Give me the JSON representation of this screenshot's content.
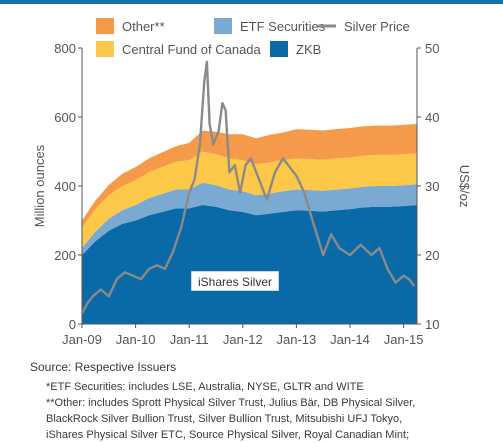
{
  "chart_data": {
    "type": "area",
    "title": "",
    "ylabel_left": "Million ounces",
    "ylabel_right": "US$/oz",
    "ylim_left": [
      0,
      800
    ],
    "ylim_right": [
      10,
      50
    ],
    "y_ticks_left": [
      "0",
      "200",
      "400",
      "600",
      "800"
    ],
    "y_ticks_right": [
      "10",
      "20",
      "30",
      "40",
      "50"
    ],
    "x_ticks": [
      "Jan-09",
      "Jan-10",
      "Jan-11",
      "Jan-12",
      "Jan-13",
      "Jan-14",
      "Jan-15"
    ],
    "stacking_order_bottom_to_top": [
      "ZKB",
      "ETF Securities",
      "Central Fund of Canada",
      "Other**"
    ],
    "x": [
      2009.0,
      2009.25,
      2009.5,
      2009.75,
      2010.0,
      2010.25,
      2010.5,
      2010.75,
      2011.0,
      2011.25,
      2011.5,
      2011.75,
      2012.0,
      2012.25,
      2012.5,
      2012.75,
      2013.0,
      2013.25,
      2013.5,
      2013.75,
      2014.0,
      2014.25,
      2014.5,
      2014.75,
      2015.0,
      2015.25
    ],
    "series": [
      {
        "name": "ZKB",
        "color": "#0a6aa8",
        "axis": "left",
        "values": [
          200,
          240,
          270,
          290,
          300,
          315,
          325,
          335,
          335,
          345,
          340,
          330,
          325,
          315,
          320,
          325,
          330,
          328,
          326,
          330,
          333,
          338,
          340,
          340,
          342,
          345
        ]
      },
      {
        "name": "ETF Securities",
        "color": "#7aa9d1",
        "axis": "left",
        "values": [
          20,
          28,
          35,
          40,
          45,
          50,
          52,
          55,
          55,
          65,
          62,
          60,
          60,
          58,
          58,
          60,
          60,
          60,
          60,
          60,
          60,
          60,
          60,
          60,
          60,
          60
        ]
      },
      {
        "name": "Central Fund of Canada",
        "color": "#fdc848",
        "axis": "left",
        "values": [
          60,
          65,
          68,
          70,
          72,
          75,
          78,
          80,
          85,
          90,
          90,
          90,
          90,
          90,
          90,
          90,
          90,
          90,
          90,
          90,
          90,
          90,
          90,
          90,
          90,
          90
        ]
      },
      {
        "name": "Other**",
        "color": "#f49a4a",
        "axis": "left",
        "values": [
          20,
          25,
          30,
          35,
          38,
          40,
          43,
          45,
          50,
          60,
          65,
          70,
          75,
          75,
          80,
          80,
          85,
          85,
          85,
          85,
          85,
          85,
          85,
          85,
          85,
          85
        ]
      },
      {
        "name": "Silver Price",
        "color": "#8a8a8a",
        "axis": "right",
        "type": "line",
        "x": [
          2009.0,
          2009.1,
          2009.2,
          2009.35,
          2009.5,
          2009.65,
          2009.8,
          2009.95,
          2010.1,
          2010.25,
          2010.4,
          2010.55,
          2010.7,
          2010.85,
          2011.0,
          2011.1,
          2011.2,
          2011.28,
          2011.33,
          2011.38,
          2011.45,
          2011.55,
          2011.62,
          2011.68,
          2011.75,
          2011.85,
          2011.95,
          2012.05,
          2012.15,
          2012.3,
          2012.45,
          2012.6,
          2012.75,
          2012.9,
          2013.0,
          2013.15,
          2013.3,
          2013.5,
          2013.65,
          2013.8,
          2014.0,
          2014.2,
          2014.4,
          2014.55,
          2014.7,
          2014.85,
          2015.0,
          2015.1,
          2015.2
        ],
        "values": [
          11.5,
          13.0,
          14.0,
          15.0,
          14.0,
          16.5,
          17.5,
          17.0,
          16.5,
          18.0,
          18.5,
          18.0,
          20.5,
          24.0,
          29.0,
          31.0,
          36.0,
          45.0,
          48.0,
          39.0,
          36.0,
          38.0,
          42.0,
          41.0,
          32.0,
          33.0,
          29.0,
          33.0,
          34.0,
          31.0,
          28.0,
          32.0,
          34.0,
          32.5,
          31.5,
          29.0,
          25.0,
          20.0,
          23.0,
          21.0,
          20.0,
          21.5,
          20.0,
          21.0,
          18.0,
          16.0,
          17.0,
          16.5,
          15.5
        ]
      }
    ],
    "legend": [
      {
        "label": "Other**",
        "color": "#f49a4a",
        "kind": "swatch"
      },
      {
        "label": "ETF Securities",
        "color": "#7aa9d1",
        "kind": "swatch"
      },
      {
        "label": "Silver Price",
        "color": "#8a8a8a",
        "kind": "line"
      },
      {
        "label": "Central Fund of Canada",
        "color": "#fdc848",
        "kind": "swatch"
      },
      {
        "label": "ZKB",
        "color": "#0a6aa8",
        "kind": "swatch"
      }
    ],
    "inner_label": "iShares Silver",
    "inner_label_color": "#0a6aa8",
    "legend_placement": "top",
    "grid": false
  },
  "footer": {
    "source": "Source: Respective Issuers",
    "notes": [
      "*ETF Securities: includes LSE, Australia, NYSE, GLTR and WITE",
      "**Other: includes Sprott Physical Silver Trust, Julius Bär, DB Physical Silver,",
      "BlackRock Silver Bullion Trust, Silver Bullion Trust, Mitsubishi UFJ Tokyo,",
      "iShares Physical Silver ETC, Source Physical Silver, Royal Canadian Mint;"
    ]
  }
}
